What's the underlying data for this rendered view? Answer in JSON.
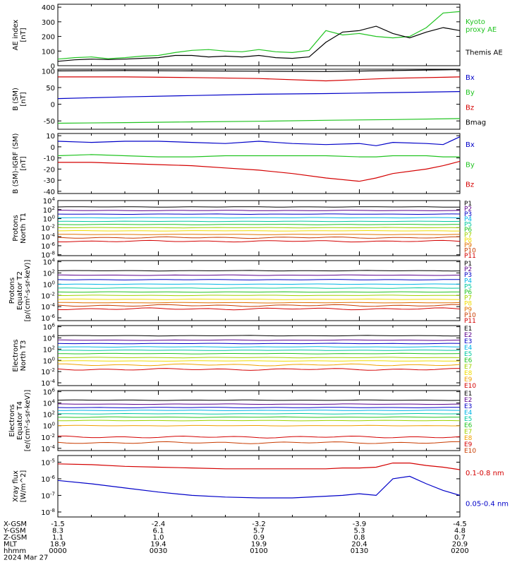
{
  "colors": {
    "black": "#000000",
    "red": "#d40000",
    "green": "#22c422",
    "blue": "#0000c8",
    "p_cyan": "#00b4e6",
    "p_teal": "#00c8a0",
    "p_yellowgreen": "#a0d200",
    "p_yellow": "#f0dc00",
    "p_orange": "#f0a000",
    "p_darkorange": "#e07000",
    "p_brown": "#c83c00",
    "p_purple": "#5a008c"
  },
  "chart_data": [
    {
      "id": "ae",
      "type": "line",
      "ylabel": "AE index\n[nT]",
      "yticks": [
        0,
        100,
        200,
        300,
        400
      ],
      "ylim": [
        0,
        420
      ],
      "x": [
        0,
        5,
        10,
        15,
        20,
        25,
        30,
        35,
        40,
        45,
        50,
        55,
        60,
        65,
        70,
        75,
        80,
        85,
        90,
        95,
        100,
        105,
        110,
        115,
        120
      ],
      "series": [
        {
          "name": "Kyoto\nproxy AE",
          "color": "green",
          "values": [
            45,
            55,
            60,
            48,
            55,
            65,
            70,
            90,
            105,
            110,
            100,
            95,
            110,
            95,
            90,
            105,
            240,
            210,
            220,
            200,
            190,
            200,
            260,
            360,
            370
          ]
        },
        {
          "name": "Themis AE",
          "color": "black",
          "values": [
            30,
            40,
            45,
            42,
            45,
            50,
            55,
            70,
            70,
            60,
            65,
            60,
            70,
            55,
            50,
            60,
            160,
            230,
            240,
            270,
            220,
            190,
            230,
            260,
            240
          ]
        }
      ]
    },
    {
      "id": "bsm",
      "type": "line",
      "ylabel": "B (SM)\n[nT]",
      "yticks": [
        -50,
        0,
        50,
        100
      ],
      "ylim": [
        -75,
        105
      ],
      "x": [
        0,
        20,
        40,
        60,
        80,
        100,
        120
      ],
      "series": [
        {
          "name": "Bx",
          "color": "blue",
          "values": [
            17,
            22,
            26,
            30,
            32,
            35,
            38
          ]
        },
        {
          "name": "By",
          "color": "green",
          "values": [
            -57,
            -55,
            -53,
            -51,
            -48,
            -46,
            -43
          ]
        },
        {
          "name": "Bz",
          "color": "red",
          "values": [
            82,
            82,
            80,
            77,
            70,
            78,
            82
          ]
        },
        {
          "name": "Bmag",
          "color": "black",
          "values": [
            100,
            101,
            100,
            99,
            98,
            101,
            104
          ]
        }
      ]
    },
    {
      "id": "bigrf",
      "type": "line",
      "ylabel": "B (SM)-IGRF (SM)\n[nT]",
      "yticks": [
        -40,
        -30,
        -20,
        -10,
        0,
        10
      ],
      "ylim": [
        -42,
        12
      ],
      "x": [
        0,
        10,
        20,
        30,
        40,
        50,
        60,
        70,
        80,
        90,
        95,
        100,
        110,
        115,
        120
      ],
      "series": [
        {
          "name": "Bx",
          "color": "blue",
          "values": [
            5,
            4,
            5,
            5,
            4,
            3,
            5,
            3,
            2,
            3,
            1,
            4,
            3,
            2,
            9
          ]
        },
        {
          "name": "By",
          "color": "green",
          "values": [
            -8,
            -7,
            -8,
            -9,
            -9,
            -8,
            -8,
            -8,
            -8,
            -9,
            -9,
            -8,
            -8,
            -9,
            -9
          ]
        },
        {
          "name": "Bz",
          "color": "red",
          "values": [
            -14,
            -14,
            -15,
            -16,
            -17,
            -19,
            -21,
            -24,
            -28,
            -31,
            -28,
            -24,
            -20,
            -17,
            -13
          ]
        }
      ]
    },
    {
      "id": "pn",
      "type": "line",
      "ylabel": "Protons\nNorth T1",
      "log": true,
      "ytick_exps": [
        -8,
        -6,
        -4,
        -2,
        0,
        2,
        4
      ],
      "ylim_exp": [
        -8.2,
        4
      ],
      "channels": [
        {
          "name": "P1",
          "color": "black",
          "level": 2.6
        },
        {
          "name": "P2",
          "color": "p_purple",
          "level": 1.8
        },
        {
          "name": "P3",
          "color": "blue",
          "level": 1.0
        },
        {
          "name": "P4",
          "color": "p_cyan",
          "level": 0.2
        },
        {
          "name": "P5",
          "color": "p_teal",
          "level": -0.6
        },
        {
          "name": "P6",
          "color": "green",
          "level": -1.3
        },
        {
          "name": "P7",
          "color": "p_yellowgreen",
          "level": -2.0
        },
        {
          "name": "P8",
          "color": "p_yellow",
          "level": -2.7
        },
        {
          "name": "P9",
          "color": "p_darkorange",
          "level": -3.5
        },
        {
          "name": "P10",
          "color": "p_brown",
          "level": -4.2
        },
        {
          "name": "P11",
          "color": "red",
          "level": -5.0
        }
      ]
    },
    {
      "id": "pe",
      "type": "line",
      "ylabel": "Protons\nEquator T2\n[p/(cm²-s-sr-keV)]",
      "log": true,
      "ytick_exps": [
        -6,
        -4,
        -2,
        0,
        2,
        4
      ],
      "ylim_exp": [
        -6.5,
        4.2
      ],
      "channels": [
        {
          "name": "P1",
          "color": "black",
          "level": 2.4
        },
        {
          "name": "P2",
          "color": "p_purple",
          "level": 1.6
        },
        {
          "name": "P3",
          "color": "blue",
          "level": 0.8
        },
        {
          "name": "P4",
          "color": "p_cyan",
          "level": 0.0
        },
        {
          "name": "P5",
          "color": "p_teal",
          "level": -0.7
        },
        {
          "name": "P6",
          "color": "green",
          "level": -1.4
        },
        {
          "name": "P7",
          "color": "p_yellowgreen",
          "level": -2.0
        },
        {
          "name": "P8",
          "color": "p_yellow",
          "level": -2.7
        },
        {
          "name": "P9",
          "color": "p_darkorange",
          "level": -3.3
        },
        {
          "name": "P10",
          "color": "p_brown",
          "level": -3.8
        },
        {
          "name": "P11",
          "color": "red",
          "level": -4.4
        }
      ]
    },
    {
      "id": "en",
      "type": "line",
      "ylabel": "Electrons\nNorth T3",
      "log": true,
      "ytick_exps": [
        -4,
        -2,
        0,
        2,
        4,
        6
      ],
      "ylim_exp": [
        -4.5,
        6.2
      ],
      "channels": [
        {
          "name": "E1",
          "color": "black",
          "level": 4.4
        },
        {
          "name": "E2",
          "color": "p_purple",
          "level": 3.6
        },
        {
          "name": "E3",
          "color": "blue",
          "level": 3.0
        },
        {
          "name": "E4",
          "color": "p_cyan",
          "level": 2.4
        },
        {
          "name": "E5",
          "color": "p_teal",
          "level": 1.8
        },
        {
          "name": "E6",
          "color": "green",
          "level": 1.2
        },
        {
          "name": "E7",
          "color": "p_yellowgreen",
          "level": 0.5
        },
        {
          "name": "E8",
          "color": "p_yellow",
          "level": -0.1
        },
        {
          "name": "E9",
          "color": "p_orange",
          "level": -0.8
        },
        {
          "name": "E10",
          "color": "red",
          "level": -1.6
        }
      ]
    },
    {
      "id": "ee",
      "type": "line",
      "ylabel": "Electrons\nEquator T4\n[e/(cm²-s-sr-keV)]",
      "log": true,
      "ytick_exps": [
        -4,
        -2,
        0,
        2,
        4,
        6
      ],
      "ylim_exp": [
        -4.4,
        6.2
      ],
      "channels": [
        {
          "name": "E1",
          "color": "black",
          "level": 4.5
        },
        {
          "name": "E2",
          "color": "p_purple",
          "level": 3.8
        },
        {
          "name": "E3",
          "color": "blue",
          "level": 3.2
        },
        {
          "name": "E4",
          "color": "p_cyan",
          "level": 2.7
        },
        {
          "name": "E5",
          "color": "p_teal",
          "level": 2.1
        },
        {
          "name": "E6",
          "color": "green",
          "level": 1.5
        },
        {
          "name": "E7",
          "color": "p_yellowgreen",
          "level": 0.9
        },
        {
          "name": "E8",
          "color": "p_orange",
          "level": 0.0
        },
        {
          "name": "E9",
          "color": "red",
          "level": -2.0
        },
        {
          "name": "E10",
          "color": "p_brown",
          "level": -3.0
        }
      ]
    },
    {
      "id": "xray",
      "type": "line",
      "ylabel": "Xray flux\n[W/m^2]",
      "log": true,
      "ytick_exps": [
        -8,
        -7,
        -6,
        -5
      ],
      "ylim_exp": [
        -8.3,
        -4.6
      ],
      "x": [
        0,
        10,
        20,
        30,
        40,
        50,
        60,
        70,
        80,
        85,
        90,
        95,
        100,
        105,
        110,
        115,
        120
      ],
      "series": [
        {
          "name": "0.1-0.8 nm",
          "color": "red",
          "values": [
            -5.1,
            -5.15,
            -5.25,
            -5.3,
            -5.35,
            -5.4,
            -5.4,
            -5.4,
            -5.4,
            -5.35,
            -5.35,
            -5.3,
            -5.05,
            -5.05,
            -5.2,
            -5.3,
            -5.45
          ]
        },
        {
          "name": "0.05-0.4 nm",
          "color": "blue",
          "values": [
            -6.1,
            -6.3,
            -6.55,
            -6.8,
            -7.0,
            -7.1,
            -7.15,
            -7.15,
            -7.05,
            -7.0,
            -6.9,
            -7.0,
            -6.0,
            -5.85,
            -6.3,
            -6.7,
            -7.0
          ]
        }
      ]
    }
  ],
  "xaxis": {
    "row_labels": [
      "X-GSM",
      "Y-GSM",
      "Z-GSM",
      "MLT",
      "hhmm"
    ],
    "columns": [
      {
        "t": 0,
        "values": [
          "-1.5",
          "8.3",
          "1.1",
          "18.9",
          "0000"
        ]
      },
      {
        "t": 30,
        "values": [
          "-2.4",
          "6.1",
          "1.0",
          "19.4",
          "0030"
        ]
      },
      {
        "t": 60,
        "values": [
          "-3.2",
          "5.7",
          "0.9",
          "19.9",
          "0100"
        ]
      },
      {
        "t": 90,
        "values": [
          "-3.9",
          "5.3",
          "0.8",
          "20.4",
          "0130"
        ]
      },
      {
        "t": 120,
        "values": [
          "-4.5",
          "4.8",
          "0.7",
          "20.9",
          "0200"
        ]
      }
    ],
    "date": "2024 Mar 27"
  }
}
